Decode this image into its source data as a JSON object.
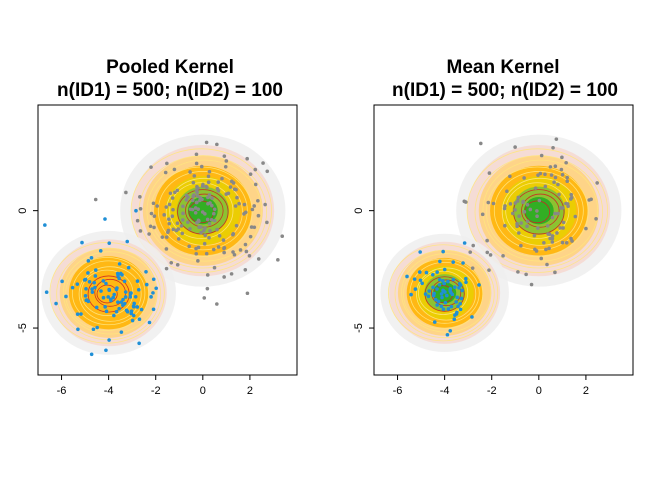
{
  "chart_data": [
    {
      "type": "heatmap",
      "title": "Pooled Kernel",
      "subtitle": "n(ID1) = 500; n(ID2) = 100",
      "xlabel": "",
      "ylabel": "",
      "xlim": [
        -7,
        4
      ],
      "ylim": [
        -7,
        4.5
      ],
      "x_ticks": [
        -6,
        -4,
        -2,
        0,
        2
      ],
      "y_ticks": [
        -5,
        0
      ],
      "grid": false,
      "legend": "none",
      "kernels": [
        {
          "center": [
            0,
            0
          ],
          "spread": 1.35,
          "weight": 1.0
        },
        {
          "center": [
            -4,
            -3.5
          ],
          "spread": 1.1,
          "weight": 0.2
        }
      ],
      "series": [
        {
          "color": "#888888",
          "center": [
            0,
            0
          ],
          "spread": 1.3,
          "n": 500,
          "display_n": 180
        },
        {
          "color": "#1f8fd6",
          "center": [
            -4,
            -3.5
          ],
          "spread": 1.0,
          "n": 100,
          "display_n": 100
        }
      ]
    },
    {
      "type": "heatmap",
      "title": "Mean Kernel",
      "subtitle": "n(ID1) = 500; n(ID2) = 100",
      "xlabel": "",
      "ylabel": "",
      "xlim": [
        -7,
        4
      ],
      "ylim": [
        -7,
        4.5
      ],
      "x_ticks": [
        -6,
        -4,
        -2,
        0,
        2
      ],
      "y_ticks": [
        -5,
        0
      ],
      "grid": false,
      "legend": "none",
      "kernels": [
        {
          "center": [
            0,
            0
          ],
          "spread": 1.35,
          "weight": 1.0
        },
        {
          "center": [
            -4,
            -3.5
          ],
          "spread": 1.05,
          "weight": 1.0
        }
      ],
      "series": [
        {
          "color": "#888888",
          "center": [
            0,
            0
          ],
          "spread": 1.3,
          "n": 500,
          "display_n": 110
        },
        {
          "color": "#1f8fd6",
          "center": [
            -4,
            -3.5
          ],
          "spread": 0.8,
          "n": 100,
          "display_n": 70
        }
      ]
    }
  ],
  "palette": {
    "density_ramp": [
      "#eeeeee",
      "#f6d8d0",
      "#ffd27a",
      "#ffb300",
      "#e8d000",
      "#7cbf3a",
      "#22aa22"
    ],
    "contour_outer": "#ffe680",
    "contour_inner": "#cc2222"
  }
}
